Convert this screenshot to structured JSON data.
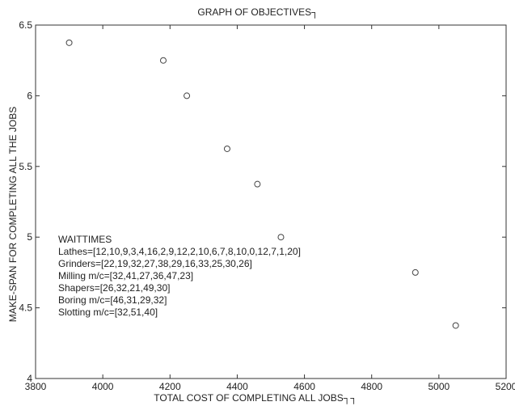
{
  "chart_data": {
    "type": "scatter",
    "title": "GRAPH OF OBJECTIVES┐",
    "xlabel": "TOTAL COST OF COMPLETING ALL JOBS┐┐",
    "ylabel": "MAKE-SPAN FOR COMPLETING ALL THE JOBS",
    "xlim": [
      3800,
      5200
    ],
    "ylim": [
      4,
      6.5
    ],
    "x_ticks": [
      3800,
      4000,
      4200,
      4400,
      4600,
      4800,
      5000,
      5200
    ],
    "y_ticks": [
      4,
      4.5,
      5,
      5.5,
      6,
      6.5
    ],
    "x_tick_labels": [
      "3800",
      "4000",
      "4200",
      "4400",
      "4600",
      "4800",
      "5000",
      "5200"
    ],
    "y_tick_labels": [
      "4",
      "4.5",
      "5",
      "5.5",
      "6",
      "6.5"
    ],
    "marker": "open-circle",
    "grid": false,
    "points": [
      {
        "x": 3900,
        "y": 6.375
      },
      {
        "x": 4180,
        "y": 6.25
      },
      {
        "x": 4250,
        "y": 6.0
      },
      {
        "x": 4370,
        "y": 5.625
      },
      {
        "x": 4460,
        "y": 5.375
      },
      {
        "x": 4530,
        "y": 5.0
      },
      {
        "x": 4930,
        "y": 4.75
      },
      {
        "x": 5050,
        "y": 4.375
      }
    ],
    "annotation_lines": [
      "WAITTIMES",
      "Lathes=[12,10,9,3,4,16,2,9,12,2,10,6,7,8,10,0,12,7,1,20]",
      "Grinders=[22,19,32,27,38,29,16,33,25,30,26]",
      "Milling m/c=[32,41,27,36,47,23]",
      "Shapers=[26,32,21,49,30]",
      "Boring m/c=[46,31,29,32]",
      "Slotting m/c=[32,51,40]"
    ]
  }
}
